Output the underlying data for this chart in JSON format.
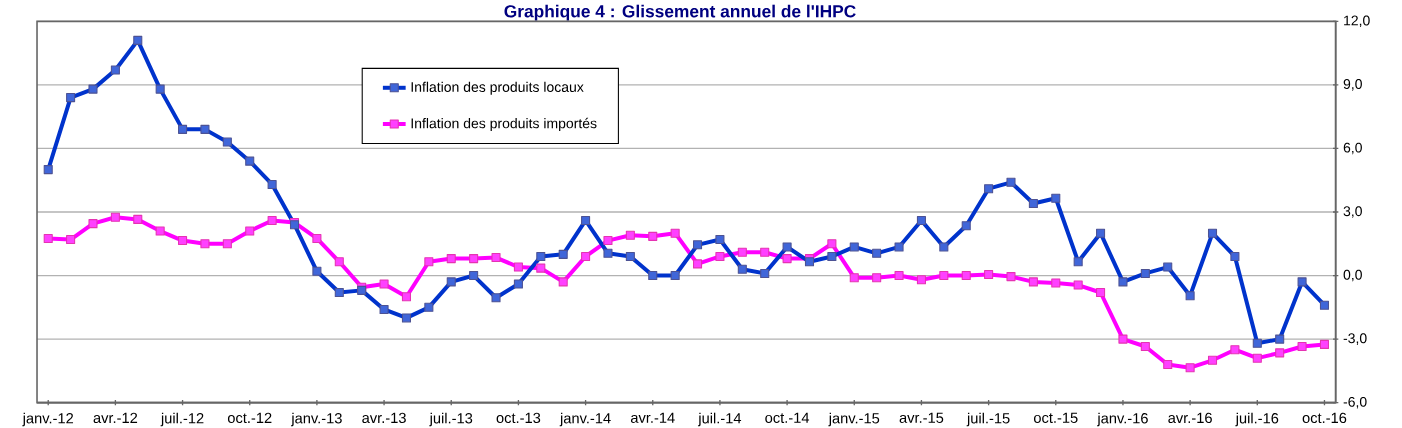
{
  "chart_data": {
    "type": "line",
    "title": "Graphique 4 : Glissement annuel de l'IHPC",
    "categories": [
      "janv.-12",
      null,
      null,
      "avr.-12",
      null,
      null,
      "juil.-12",
      null,
      null,
      "oct.-12",
      null,
      null,
      "janv.-13",
      null,
      null,
      "avr.-13",
      null,
      null,
      "juil.-13",
      null,
      null,
      "oct.-13",
      null,
      null,
      "janv.-14",
      null,
      null,
      "avr.-14",
      null,
      null,
      "juil.-14",
      null,
      null,
      "oct.-14",
      null,
      null,
      "janv.-15",
      null,
      null,
      "avr.-15",
      null,
      null,
      "juil.-15",
      null,
      null,
      "oct.-15",
      null,
      null,
      "janv.-16",
      null,
      null,
      "avr.-16",
      null,
      null,
      "juil.-16",
      null,
      null,
      "oct.-16"
    ],
    "series": [
      {
        "name": "Inflation des produits locaux",
        "color": "#0033cc",
        "values": [
          5.0,
          8.4,
          8.8,
          9.7,
          11.1,
          8.8,
          6.9,
          6.9,
          6.3,
          5.4,
          4.3,
          2.4,
          0.2,
          -0.8,
          -0.7,
          -1.6,
          -2.0,
          -1.5,
          -0.3,
          0.0,
          -1.05,
          -0.4,
          0.9,
          1.0,
          2.6,
          1.05,
          0.9,
          0.0,
          0.0,
          1.45,
          1.7,
          0.3,
          0.1,
          1.35,
          0.65,
          0.9,
          1.35,
          1.05,
          1.35,
          2.6,
          1.35,
          2.35,
          4.1,
          4.4,
          3.4,
          3.65,
          0.65,
          2.0,
          -0.3,
          0.1,
          0.4,
          -0.95,
          2.0,
          0.9,
          -3.2,
          -3.0,
          -0.3,
          -1.4
        ]
      },
      {
        "name": "Inflation des produits importés",
        "color": "#ff00ff",
        "values": [
          1.75,
          1.7,
          2.45,
          2.75,
          2.65,
          2.1,
          1.65,
          1.5,
          1.5,
          2.1,
          2.6,
          2.5,
          1.75,
          0.65,
          -0.55,
          -0.4,
          -1.0,
          0.65,
          0.8,
          0.8,
          0.85,
          0.4,
          0.35,
          -0.3,
          0.9,
          1.65,
          1.9,
          1.85,
          2.0,
          0.55,
          0.9,
          1.1,
          1.1,
          0.8,
          0.8,
          1.5,
          -0.1,
          -0.1,
          0.0,
          -0.2,
          0.0,
          0.0,
          0.05,
          -0.05,
          -0.3,
          -0.35,
          -0.45,
          -0.8,
          -3.0,
          -3.35,
          -4.2,
          -4.35,
          -4.0,
          -3.5,
          -3.9,
          -3.65,
          -3.35,
          -3.25
        ]
      }
    ],
    "ylim": [
      -6,
      12
    ],
    "yticks": [
      {
        "value": -6,
        "label": "-6,0"
      },
      {
        "value": -3,
        "label": "-3,0"
      },
      {
        "value": 0,
        "label": "0,0"
      },
      {
        "value": 3,
        "label": "3,0"
      },
      {
        "value": 6,
        "label": "6,0"
      },
      {
        "value": 9,
        "label": "9,0"
      },
      {
        "value": 12,
        "label": "12,0"
      }
    ],
    "grid": "y",
    "legend": "top",
    "marker": "square",
    "line_style": "solid"
  }
}
